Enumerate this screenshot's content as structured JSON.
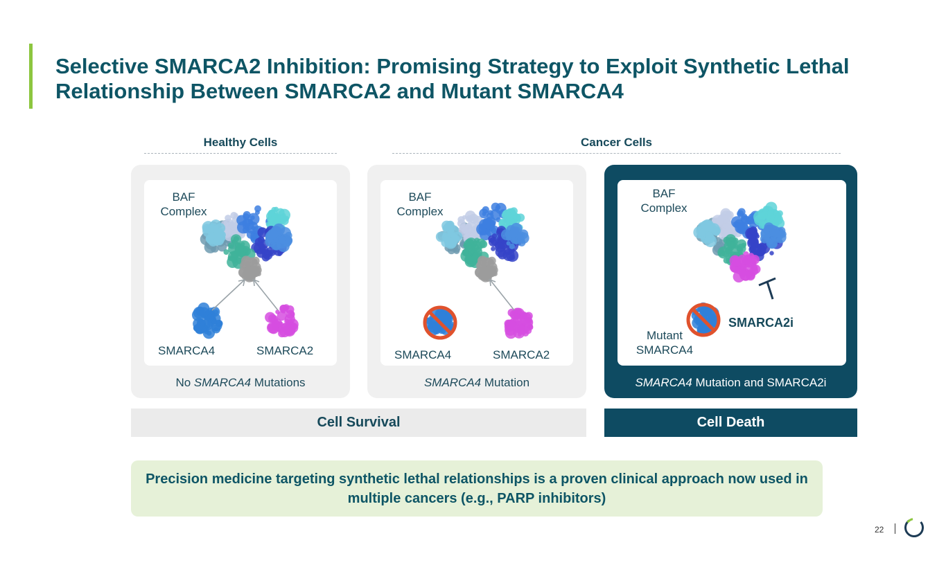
{
  "title": "Selective SMARCA2 Inhibition: Promising Strategy to Exploit Synthetic Lethal Relationship Between SMARCA2 and Mutant SMARCA4",
  "headers": {
    "healthy": "Healthy Cells",
    "cancer": "Cancer Cells"
  },
  "panels": [
    {
      "complex": "BAF Complex",
      "left": "SMARCA4",
      "right": "SMARCA2",
      "caption_italic": "",
      "caption_pre": "No ",
      "caption_it": "SMARCA4",
      "caption_post": " Mutations"
    },
    {
      "complex": "BAF Complex",
      "left": "SMARCA4",
      "right": "SMARCA2",
      "caption_pre": "",
      "caption_it": "SMARCA4",
      "caption_post": " Mutation"
    },
    {
      "complex": "BAF Complex",
      "left": "Mutant SMARCA4",
      "right": "SMARCA2i",
      "caption_pre": "",
      "caption_it": "SMARCA4",
      "caption_post": " Mutation and SMARCA2i"
    }
  ],
  "outcomes": {
    "survival": "Cell Survival",
    "death": "Cell Death"
  },
  "callout": "Precision medicine targeting synthetic lethal relationships is a proven clinical approach now used in multiple cancers (e.g., PARP inhibitors)",
  "page_number": "22",
  "colors": {
    "title": "#0e5565",
    "accent": "#8dc63f",
    "dark_panel": "#0e4b62",
    "callout_bg": "#e6f1d8",
    "smarca4": "#2f80d8",
    "smarca2": "#d64ee0",
    "prohibit": "#e0522d"
  }
}
